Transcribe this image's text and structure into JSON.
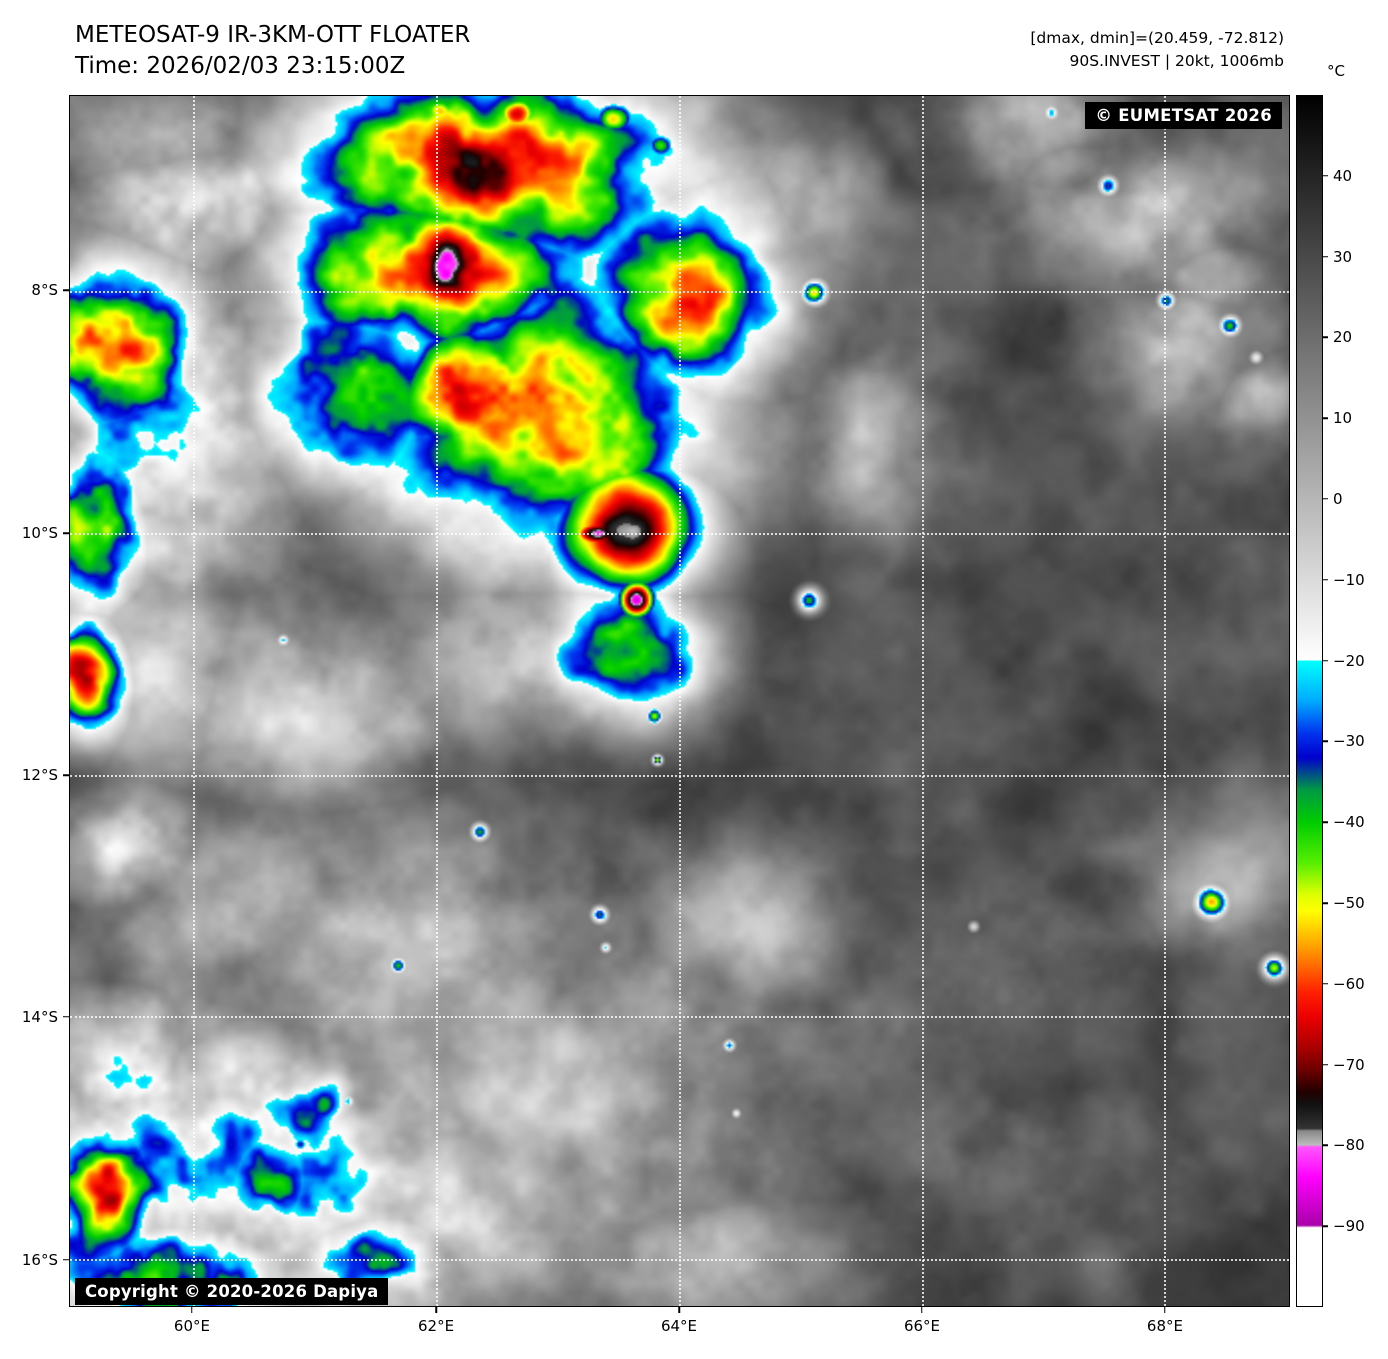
{
  "header": {
    "title": "METEOSAT-9 IR-3KM-OTT FLOATER",
    "time": "Time: 2026/02/03 23:15:00Z",
    "dminmax": "[dmax, dmin]=(20.459, -72.812)",
    "storm_info": "90S.INVEST | 20kt, 1006mb"
  },
  "map": {
    "credit": "© EUMETSAT 2026",
    "copyright": "Copyright © 2020-2026 Dapiya",
    "lat_ticks": [
      {
        "label": "8°S",
        "pct": 16.09
      },
      {
        "label": "10°S",
        "pct": 36.14
      },
      {
        "label": "12°S",
        "pct": 56.11
      },
      {
        "label": "14°S",
        "pct": 76.07
      },
      {
        "label": "16°S",
        "pct": 96.12
      }
    ],
    "lon_ticks": [
      {
        "label": "60°E",
        "pct": 10.07
      },
      {
        "label": "62°E",
        "pct": 30.06
      },
      {
        "label": "64°E",
        "pct": 49.96
      },
      {
        "label": "66°E",
        "pct": 69.86
      },
      {
        "label": "68°E",
        "pct": 89.76
      }
    ]
  },
  "colorbar": {
    "unit": "°C",
    "ticks": [
      {
        "label": "40",
        "pct": 6.67
      },
      {
        "label": "30",
        "pct": 13.33
      },
      {
        "label": "20",
        "pct": 20.0
      },
      {
        "label": "10",
        "pct": 26.67
      },
      {
        "label": "0",
        "pct": 33.33
      },
      {
        "label": "−10",
        "pct": 40.0
      },
      {
        "label": "−20",
        "pct": 46.67
      },
      {
        "label": "−30",
        "pct": 53.33
      },
      {
        "label": "−40",
        "pct": 60.0
      },
      {
        "label": "−50",
        "pct": 66.67
      },
      {
        "label": "−60",
        "pct": 73.33
      },
      {
        "label": "−70",
        "pct": 80.0
      },
      {
        "label": "−80",
        "pct": 86.67
      },
      {
        "label": "−90",
        "pct": 93.33
      }
    ],
    "stops": [
      {
        "t": 50,
        "c": "#000000"
      },
      {
        "t": -20,
        "c": "#ffffff"
      },
      {
        "t": -20.01,
        "c": "#00ffff"
      },
      {
        "t": -25,
        "c": "#00aaff"
      },
      {
        "t": -29,
        "c": "#0033ee"
      },
      {
        "t": -32,
        "c": "#0000cc"
      },
      {
        "t": -36,
        "c": "#009944"
      },
      {
        "t": -40,
        "c": "#00cc00"
      },
      {
        "t": -45,
        "c": "#55ee00"
      },
      {
        "t": -49,
        "c": "#ddff00"
      },
      {
        "t": -51,
        "c": "#ffff00"
      },
      {
        "t": -55,
        "c": "#ffaa00"
      },
      {
        "t": -58,
        "c": "#ff6600"
      },
      {
        "t": -61,
        "c": "#ff2200"
      },
      {
        "t": -64,
        "c": "#ee0000"
      },
      {
        "t": -68,
        "c": "#aa0000"
      },
      {
        "t": -71,
        "c": "#660000"
      },
      {
        "t": -73.5,
        "c": "#220000"
      },
      {
        "t": -75,
        "c": "#111111"
      },
      {
        "t": -78,
        "c": "#333333"
      },
      {
        "t": -78.3,
        "c": "#888888"
      },
      {
        "t": -80,
        "c": "#bbbbbb"
      },
      {
        "t": -80.3,
        "c": "#ff55ff"
      },
      {
        "t": -84,
        "c": "#ff00ff"
      },
      {
        "t": -90,
        "c": "#aa00aa"
      },
      {
        "t": -90.3,
        "c": "#ffffff"
      },
      {
        "t": -100,
        "c": "#ffffff"
      }
    ]
  },
  "imagery": {
    "features": [
      [
        420,
        70,
        260,
        125,
        88,
        0.8,
        102
      ],
      [
        350,
        180,
        190,
        115,
        95,
        0.8,
        108
      ],
      [
        470,
        330,
        235,
        175,
        96,
        0.7,
        108
      ],
      [
        400,
        300,
        140,
        100,
        101,
        0.8,
        112
      ],
      [
        560,
        430,
        105,
        90,
        112,
        0.12,
        113
      ],
      [
        528,
        438,
        36,
        20,
        117,
        0.08,
        119
      ],
      [
        568,
        505,
        25,
        27,
        117,
        0.08,
        119
      ],
      [
        625,
        205,
        125,
        140,
        88,
        0.7,
        100
      ],
      [
        560,
        555,
        105,
        88,
        88,
        0.7,
        100
      ],
      [
        295,
        295,
        145,
        125,
        90,
        0.8,
        105
      ],
      [
        45,
        250,
        115,
        125,
        95,
        1.0,
        108
      ],
      [
        28,
        420,
        75,
        115,
        80,
        1.2,
        95
      ],
      [
        75,
        330,
        165,
        215,
        62,
        1.4,
        90
      ],
      [
        18,
        585,
        55,
        75,
        86,
        1.0,
        95
      ],
      [
        115,
        115,
        135,
        85,
        55,
        1.6,
        85
      ],
      [
        150,
        1075,
        290,
        175,
        68,
        1.6,
        98
      ],
      [
        38,
        1095,
        85,
        105,
        88,
        1.2,
        100
      ],
      [
        198,
        1085,
        68,
        78,
        85,
        1.2,
        98
      ],
      [
        115,
        1175,
        145,
        88,
        76,
        1.5,
        98
      ],
      [
        295,
        1175,
        115,
        78,
        72,
        1.5,
        95
      ],
      [
        55,
        975,
        95,
        88,
        60,
        1.7,
        88
      ],
      [
        258,
        1008,
        58,
        58,
        56,
        1.5,
        80
      ],
      [
        150,
        350,
        165,
        135,
        40,
        1.1,
        62
      ],
      [
        88,
        558,
        115,
        155,
        38,
        1.1,
        58
      ],
      [
        238,
        598,
        185,
        135,
        36,
        1.1,
        55
      ],
      [
        468,
        558,
        215,
        105,
        44,
        1.0,
        62
      ],
      [
        328,
        868,
        310,
        175,
        34,
        1.3,
        55
      ],
      [
        158,
        818,
        195,
        125,
        34,
        1.2,
        55
      ],
      [
        518,
        1000,
        275,
        195,
        32,
        1.3,
        52
      ],
      [
        678,
        828,
        165,
        115,
        24,
        1.2,
        40
      ],
      [
        898,
        868,
        215,
        145,
        17,
        1.2,
        30
      ],
      [
        1078,
        118,
        165,
        95,
        31,
        1.4,
        52
      ],
      [
        958,
        28,
        125,
        65,
        32,
        1.3,
        50
      ],
      [
        1118,
        248,
        105,
        85,
        30,
        1.3,
        48
      ],
      [
        738,
        108,
        85,
        95,
        28,
        1.2,
        44
      ],
      [
        788,
        348,
        105,
        125,
        26,
        1.2,
        42
      ],
      [
        398,
        1118,
        255,
        125,
        38,
        1.2,
        56
      ],
      [
        618,
        1168,
        215,
        85,
        28,
        1.2,
        44
      ],
      [
        978,
        1098,
        195,
        115,
        15,
        1.2,
        26
      ],
      [
        1148,
        798,
        145,
        95,
        20,
        1.2,
        34
      ],
      [
        58,
        758,
        88,
        78,
        48,
        1.5,
        75
      ],
      [
        80,
        40,
        150,
        85,
        38,
        1.2,
        56
      ],
      [
        1000,
        70,
        60,
        40,
        30,
        1.3,
        46
      ],
      [
        1150,
        180,
        70,
        50,
        30,
        1.3,
        46
      ],
      [
        1195,
        300,
        60,
        55,
        28,
        1.3,
        44
      ],
      [
        371,
        15,
        30,
        22,
        74,
        0.5,
        80
      ],
      [
        448,
        18,
        30,
        24,
        92,
        0.5,
        96
      ],
      [
        492,
        38,
        24,
        20,
        76,
        0.5,
        82
      ],
      [
        545,
        22,
        28,
        22,
        82,
        0.5,
        88
      ],
      [
        592,
        50,
        20,
        18,
        68,
        0.5,
        74
      ],
      [
        746,
        197,
        16,
        16,
        88,
        0.5,
        94
      ],
      [
        984,
        17,
        10,
        10,
        55,
        0.5,
        61
      ],
      [
        1041,
        90,
        13,
        13,
        72,
        0.5,
        78
      ],
      [
        1099,
        205,
        11,
        11,
        70,
        0.5,
        76
      ],
      [
        1163,
        230,
        13,
        13,
        75,
        0.5,
        81
      ],
      [
        1189,
        262,
        8,
        8,
        50,
        0.5,
        56
      ],
      [
        741,
        505,
        15,
        15,
        75,
        0.5,
        81
      ],
      [
        586,
        621,
        11,
        11,
        78,
        0.5,
        84
      ],
      [
        589,
        665,
        6,
        6,
        92,
        0.4,
        95
      ],
      [
        214,
        545,
        8,
        8,
        60,
        0.5,
        66
      ],
      [
        411,
        737,
        11,
        11,
        70,
        0.5,
        76
      ],
      [
        531,
        820,
        11,
        11,
        72,
        0.5,
        78
      ],
      [
        537,
        853,
        7,
        7,
        58,
        0.5,
        64
      ],
      [
        329,
        871,
        11,
        11,
        70,
        0.5,
        76
      ],
      [
        661,
        951,
        8,
        8,
        65,
        0.5,
        71
      ],
      [
        668,
        1019,
        6,
        6,
        55,
        0.5,
        61
      ],
      [
        906,
        832,
        7,
        7,
        52,
        0.5,
        58
      ],
      [
        1144,
        808,
        20,
        20,
        74,
        0.6,
        80
      ],
      [
        1207,
        873,
        14,
        14,
        80,
        0.6,
        86
      ],
      [
        279,
        1007,
        9,
        9,
        62,
        0.5,
        68
      ],
      [
        231,
        1050,
        10,
        10,
        70,
        0.5,
        76
      ]
    ]
  }
}
